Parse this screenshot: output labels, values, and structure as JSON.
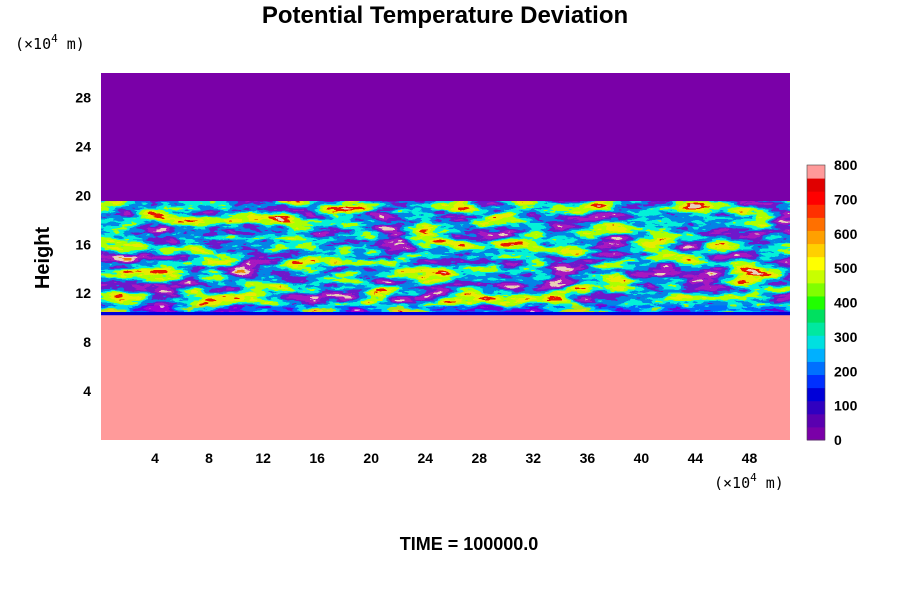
{
  "chart_data": {
    "type": "heatmap",
    "title": "Potential Temperature Deviation",
    "xlabel": "",
    "ylabel": "Height",
    "x_unit_prefix": "(×10",
    "x_unit_exp": "4",
    "x_unit_suffix": " m)",
    "y_unit_prefix": "(×10",
    "y_unit_exp": "4",
    "y_unit_suffix": " m)",
    "xlim": [
      0,
      51
    ],
    "ylim": [
      0,
      30
    ],
    "x_ticks": [
      4,
      8,
      12,
      16,
      20,
      24,
      28,
      32,
      36,
      40,
      44,
      48
    ],
    "y_ticks": [
      4,
      8,
      12,
      16,
      20,
      24,
      28
    ],
    "footer": "TIME = 100000.0",
    "colorbar": {
      "min": 0,
      "max": 800,
      "ticks": [
        0,
        100,
        200,
        300,
        400,
        500,
        600,
        700,
        800
      ],
      "colors": [
        "#7a00a8",
        "#5a00b0",
        "#3000c0",
        "#0000d8",
        "#0030ff",
        "#0070ff",
        "#00b0ff",
        "#00e0e0",
        "#00e8a0",
        "#00e060",
        "#20ff00",
        "#80ff00",
        "#c8ff00",
        "#ffff00",
        "#ffd000",
        "#ffa000",
        "#ff7000",
        "#ff3000",
        "#ff0000",
        "#e00000",
        "#ff9a9a"
      ]
    },
    "regions": [
      {
        "label": "upper uniform layer",
        "y_range": [
          19.5,
          30
        ],
        "value": 0
      },
      {
        "label": "turbulent mixing layer",
        "y_range": [
          10.5,
          19.5
        ],
        "value": 400
      },
      {
        "label": "thin cold band",
        "y_range": [
          10.2,
          11
        ],
        "value": 100
      },
      {
        "label": "lower uniform layer",
        "y_range": [
          0,
          10.5
        ],
        "value": 800
      }
    ]
  }
}
